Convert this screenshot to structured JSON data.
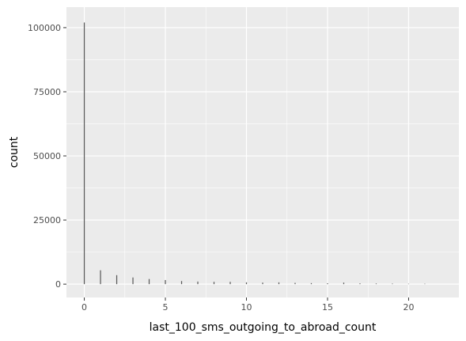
{
  "chart_data": {
    "type": "bar",
    "title": "",
    "xlabel": "last_100_sms_outgoing_to_abroad_count",
    "ylabel": "count",
    "xlim": [
      -1.1,
      23.1
    ],
    "ylim": [
      -5200,
      108000
    ],
    "x_ticks": [
      0,
      5,
      10,
      15,
      20
    ],
    "y_ticks": [
      0,
      25000,
      50000,
      75000,
      100000
    ],
    "x_tick_labels": [
      "0",
      "5",
      "10",
      "15",
      "20"
    ],
    "y_tick_labels": [
      "0",
      "25000",
      "50000",
      "75000",
      "100000"
    ],
    "grid": true,
    "colors": {
      "panel": "#ebebeb",
      "grid": "#ffffff",
      "bar": "#595959"
    },
    "x": [
      0,
      1,
      2,
      3,
      4,
      5,
      6,
      7,
      8,
      9,
      10,
      11,
      12,
      13,
      14,
      15,
      16,
      17,
      18,
      19,
      20,
      21
    ],
    "values": [
      102000,
      5400,
      3500,
      2600,
      2000,
      1600,
      1200,
      1000,
      900,
      900,
      700,
      600,
      700,
      500,
      400,
      350,
      600,
      300,
      250,
      200,
      150,
      150
    ]
  }
}
